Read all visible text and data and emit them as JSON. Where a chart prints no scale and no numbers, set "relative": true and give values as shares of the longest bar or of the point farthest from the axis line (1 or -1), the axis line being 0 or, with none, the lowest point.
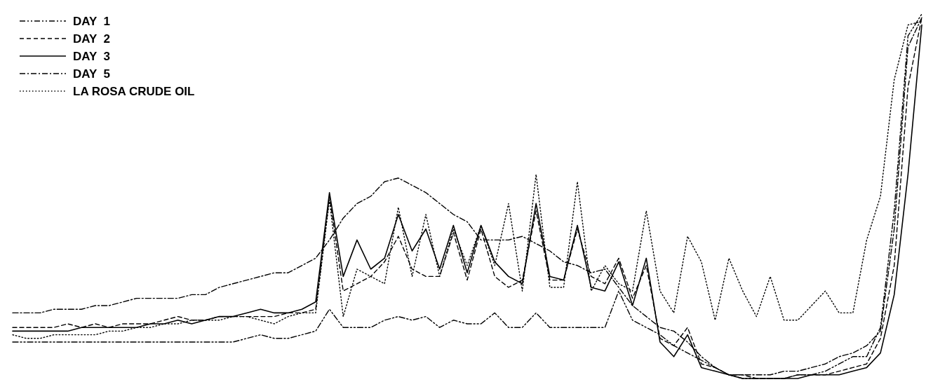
{
  "chart_data": {
    "type": "line",
    "relative": true,
    "legend": "top left",
    "categories": [
      null,
      null,
      null,
      null,
      null,
      null,
      null,
      null,
      null,
      null,
      null,
      null,
      null,
      null,
      null,
      null,
      null,
      null,
      null,
      null,
      null,
      null,
      null,
      null,
      null,
      null,
      null,
      null,
      null,
      null,
      null,
      null,
      null,
      null,
      null,
      null,
      null,
      null,
      null,
      null,
      null,
      null,
      null,
      null,
      null,
      null,
      null,
      null,
      null,
      null,
      null,
      null,
      null,
      null,
      null,
      null,
      null,
      null,
      null,
      null,
      null,
      null,
      null,
      null,
      null,
      null,
      null
    ],
    "series": [
      {
        "name": "DAY  1",
        "color": "#000000",
        "line_style": "dashdotdot",
        "values": [
          0.1,
          0.1,
          0.1,
          0.1,
          0.1,
          0.1,
          0.1,
          0.1,
          0.1,
          0.1,
          0.1,
          0.1,
          0.1,
          0.1,
          0.1,
          0.1,
          0.1,
          0.11,
          0.12,
          0.11,
          0.11,
          0.12,
          0.13,
          0.19,
          0.14,
          0.14,
          0.14,
          0.16,
          0.17,
          0.16,
          0.17,
          0.14,
          0.16,
          0.15,
          0.15,
          0.18,
          0.14,
          0.14,
          0.18,
          0.14,
          0.14,
          0.14,
          0.14,
          0.14,
          0.24,
          0.16,
          0.14,
          0.12,
          0.09,
          0.07,
          0.05,
          0.03,
          0.01,
          0.0,
          0,
          0.0,
          0.0,
          0.01,
          0.01,
          0.02,
          0.04,
          0.06,
          0.06,
          0.14,
          0.46,
          0.94,
          1.0
        ]
      },
      {
        "name": "DAY  2",
        "color": "#000000",
        "line_style": "dashed",
        "values": [
          0.14,
          0.14,
          0.14,
          0.14,
          0.15,
          0.14,
          0.15,
          0.14,
          0.15,
          0.15,
          0.15,
          0.16,
          0.17,
          0.16,
          0.16,
          0.17,
          0.17,
          0.17,
          0.17,
          0.17,
          0.18,
          0.18,
          0.19,
          0.5,
          0.24,
          0.26,
          0.28,
          0.32,
          0.39,
          0.3,
          0.28,
          0.28,
          0.4,
          0.27,
          0.41,
          0.28,
          0.25,
          0.27,
          0.46,
          0.27,
          0.27,
          0.41,
          0.28,
          0.26,
          0.33,
          0.22,
          0.31,
          0.11,
          0.09,
          0.14,
          0.04,
          0.03,
          0.01,
          0.01,
          0.0,
          0.0,
          0.0,
          0.01,
          0.01,
          0.01,
          0.02,
          0.03,
          0.04,
          0.11,
          0.31,
          0.8,
          0.99
        ]
      },
      {
        "name": "DAY  3",
        "color": "#000000",
        "line_style": "solid",
        "values": [
          0.13,
          0.13,
          0.13,
          0.13,
          0.13,
          0.14,
          0.14,
          0.14,
          0.14,
          0.14,
          0.15,
          0.15,
          0.16,
          0.15,
          0.16,
          0.17,
          0.17,
          0.18,
          0.19,
          0.18,
          0.18,
          0.19,
          0.21,
          0.51,
          0.28,
          0.38,
          0.3,
          0.33,
          0.45,
          0.35,
          0.41,
          0.3,
          0.42,
          0.29,
          0.42,
          0.32,
          0.28,
          0.26,
          0.48,
          0.28,
          0.27,
          0.42,
          0.25,
          0.24,
          0.32,
          0.2,
          0.33,
          0.1,
          0.06,
          0.12,
          0.03,
          0.02,
          0.01,
          0.0,
          0,
          0,
          0.0,
          0.0,
          0.01,
          0.01,
          0.01,
          0.02,
          0.03,
          0.07,
          0.23,
          0.56,
          0.97
        ]
      },
      {
        "name": "DAY  5",
        "color": "#000000",
        "line_style": "dashdot",
        "values": [
          0.18,
          0.18,
          0.18,
          0.19,
          0.19,
          0.19,
          0.2,
          0.2,
          0.21,
          0.22,
          0.22,
          0.22,
          0.22,
          0.23,
          0.23,
          0.25,
          0.26,
          0.27,
          0.28,
          0.29,
          0.29,
          0.31,
          0.33,
          0.38,
          0.44,
          0.48,
          0.5,
          0.54,
          0.55,
          0.53,
          0.51,
          0.48,
          0.45,
          0.43,
          0.38,
          0.38,
          0.38,
          0.39,
          0.37,
          0.35,
          0.32,
          0.31,
          0.29,
          0.3,
          0.25,
          0.2,
          0.17,
          0.14,
          0.13,
          0.1,
          0.06,
          0.03,
          0.01,
          0.01,
          0.01,
          0.01,
          0.02,
          0.02,
          0.03,
          0.04,
          0.06,
          0.07,
          0.09,
          0.13,
          0.41,
          0.91,
          0.99
        ]
      },
      {
        "name": "LA ROSA CRUDE OIL",
        "color": "#000000",
        "line_style": "dotted",
        "values": [
          0.12,
          0.11,
          0.11,
          0.12,
          0.12,
          0.12,
          0.12,
          0.13,
          0.13,
          0.14,
          0.14,
          0.15,
          0.15,
          0.16,
          0.16,
          0.16,
          0.17,
          0.17,
          0.16,
          0.15,
          0.17,
          0.18,
          0.18,
          0.49,
          0.17,
          0.3,
          0.28,
          0.26,
          0.47,
          0.28,
          0.45,
          0.28,
          0.41,
          0.31,
          0.42,
          0.31,
          0.48,
          0.24,
          0.56,
          0.25,
          0.25,
          0.54,
          0.24,
          0.31,
          0.26,
          0.24,
          0.46,
          0.24,
          0.18,
          0.39,
          0.32,
          0.16,
          0.33,
          0.24,
          0.17,
          0.28,
          0.16,
          0.16,
          0.2,
          0.24,
          0.18,
          0.18,
          0.38,
          0.5,
          0.82,
          0.97,
          0.98
        ]
      }
    ]
  }
}
